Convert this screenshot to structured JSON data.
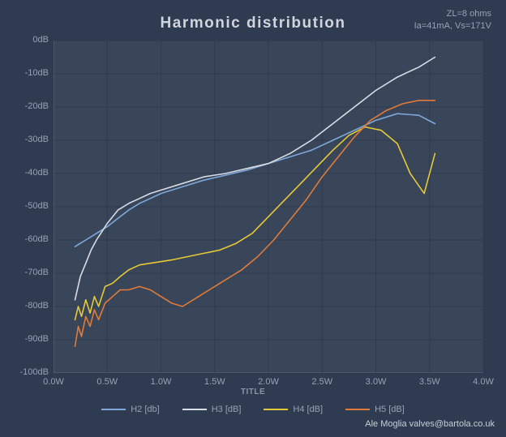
{
  "chart": {
    "type": "line",
    "title": "Harmonic distribution",
    "subtitle_lines": [
      "ZL=8 ohms",
      "Ia=41mA, Vs=171V"
    ],
    "xaxis_title": "TITLE",
    "credit": "Ale Moglia valves@bartola.co.uk",
    "background_color": "#2e3b50",
    "plot_bg_color": "#394558",
    "grid_color": "#2e3b50",
    "axis_line_color": "#5c6880",
    "axis_text_color": "#98a2b3",
    "title_color": "#d0d5dd",
    "title_fontsize": 19,
    "label_fontsize": 11,
    "xlim": [
      0.0,
      4.0
    ],
    "ylim": [
      -100,
      0
    ],
    "xticks": [
      0.0,
      0.5,
      1.0,
      1.5,
      2.0,
      2.5,
      3.0,
      3.5,
      4.0
    ],
    "xtick_labels": [
      "0.0W",
      "0.5W",
      "1.0W",
      "1.5W",
      "2.0W",
      "2.5W",
      "3.0W",
      "3.5W",
      "4.0W"
    ],
    "yticks": [
      0,
      -10,
      -20,
      -30,
      -40,
      -50,
      -60,
      -70,
      -80,
      -90,
      -100
    ],
    "ytick_labels": [
      "0dB",
      "-10dB",
      "-20dB",
      "-30dB",
      "-40dB",
      "-50dB",
      "-60dB",
      "-70dB",
      "-80dB",
      "-90dB",
      "-100dB"
    ],
    "line_width": 1.6,
    "series": [
      {
        "name": "H2 [db]",
        "color": "#7fa8d9",
        "x": [
          0.2,
          0.25,
          0.3,
          0.35,
          0.4,
          0.5,
          0.6,
          0.7,
          0.8,
          0.9,
          1.0,
          1.2,
          1.4,
          1.6,
          1.8,
          2.0,
          2.2,
          2.4,
          2.6,
          2.8,
          3.0,
          3.2,
          3.4,
          3.55
        ],
        "y": [
          -62,
          -61,
          -60,
          -59,
          -58,
          -56,
          -53.5,
          -51,
          -49,
          -47.5,
          -46,
          -44,
          -42,
          -40.5,
          -39,
          -37,
          -35,
          -33,
          -30,
          -27,
          -24,
          -22,
          -22.5,
          -25
        ]
      },
      {
        "name": "H3 [dB]",
        "color": "#d7dde5",
        "x": [
          0.2,
          0.25,
          0.3,
          0.35,
          0.4,
          0.5,
          0.6,
          0.7,
          0.8,
          0.9,
          1.0,
          1.2,
          1.4,
          1.6,
          1.8,
          2.0,
          2.2,
          2.4,
          2.6,
          2.8,
          3.0,
          3.2,
          3.4,
          3.55
        ],
        "y": [
          -78,
          -71,
          -67,
          -63,
          -60,
          -55,
          -51,
          -49,
          -47.5,
          -46,
          -45,
          -43,
          -41,
          -40,
          -38.5,
          -37,
          -34,
          -30,
          -25,
          -20,
          -15,
          -11,
          -8,
          -5
        ]
      },
      {
        "name": "H4 [dB]",
        "color": "#e6c936",
        "x": [
          0.2,
          0.23,
          0.26,
          0.3,
          0.34,
          0.38,
          0.42,
          0.48,
          0.55,
          0.62,
          0.7,
          0.8,
          0.9,
          1.0,
          1.1,
          1.25,
          1.4,
          1.55,
          1.7,
          1.85,
          2.0,
          2.15,
          2.3,
          2.45,
          2.6,
          2.75,
          2.9,
          3.05,
          3.2,
          3.32,
          3.45,
          3.55
        ],
        "y": [
          -84,
          -80,
          -83,
          -78,
          -82,
          -77,
          -80,
          -74,
          -73,
          -71,
          -69,
          -67.5,
          -67,
          -66.5,
          -66,
          -65,
          -64,
          -63,
          -61,
          -58,
          -53,
          -48,
          -43,
          -38,
          -33,
          -28.5,
          -26,
          -27,
          -31,
          -40,
          -46,
          -34
        ]
      },
      {
        "name": "H5 [dB]",
        "color": "#e07b3a",
        "x": [
          0.2,
          0.23,
          0.26,
          0.3,
          0.34,
          0.38,
          0.42,
          0.48,
          0.55,
          0.62,
          0.7,
          0.8,
          0.9,
          1.0,
          1.1,
          1.2,
          1.3,
          1.45,
          1.6,
          1.75,
          1.9,
          2.05,
          2.2,
          2.35,
          2.5,
          2.65,
          2.8,
          2.95,
          3.1,
          3.25,
          3.4,
          3.55
        ],
        "y": [
          -92,
          -86,
          -89,
          -83,
          -86,
          -81,
          -84,
          -79,
          -77,
          -75,
          -75,
          -74,
          -75,
          -77,
          -79,
          -80,
          -78,
          -75,
          -72,
          -69,
          -65,
          -60,
          -54,
          -48,
          -41,
          -35,
          -29,
          -24,
          -21,
          -19,
          -18,
          -18
        ]
      }
    ]
  },
  "legend_labels": [
    "H2 [db]",
    "H3 [dB]",
    "H4 [dB]",
    "H5 [dB]"
  ]
}
